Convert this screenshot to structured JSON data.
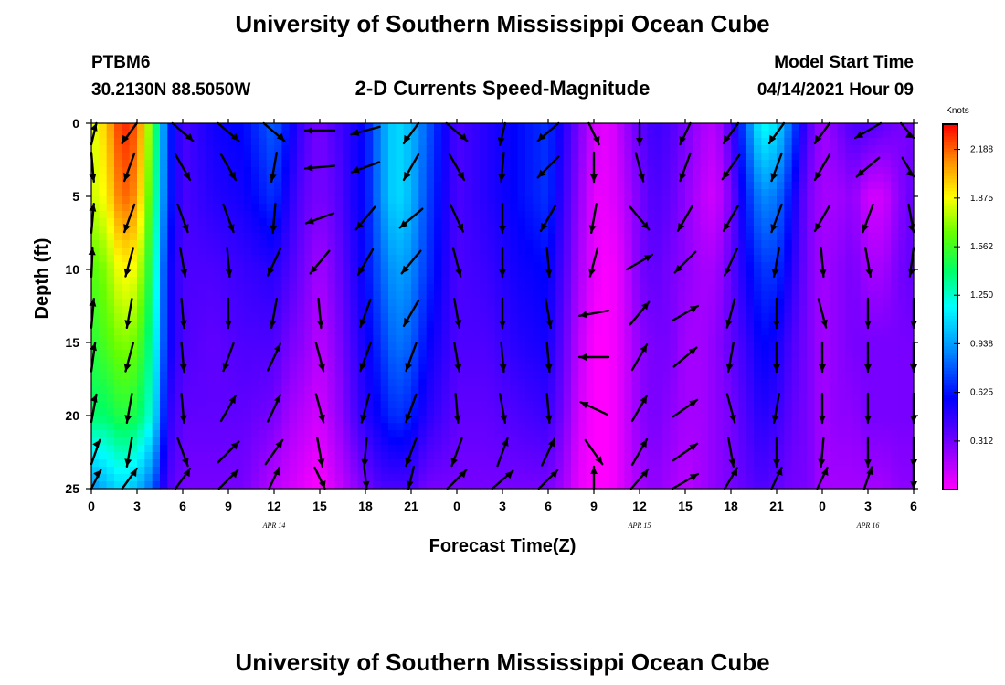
{
  "chart_data": {
    "type": "heatmap",
    "title": "University of Southern Mississippi Ocean Cube",
    "footer_title": "University of Southern Mississippi Ocean Cube",
    "station": "PTBM6",
    "location": "30.2130N  88.5050W",
    "subtitle": "2-D Currents Speed-Magnitude",
    "model_start_label": "Model Start Time",
    "model_start_value": "04/14/2021 Hour 09",
    "xlabel": "Forecast Time(Z)",
    "ylabel": "Depth (ft)",
    "xlim": [
      0,
      54
    ],
    "ylim": [
      0,
      25
    ],
    "x_ticks": [
      0,
      3,
      6,
      9,
      12,
      15,
      18,
      21,
      24,
      27,
      30,
      33,
      36,
      39,
      42,
      45,
      48,
      51,
      54
    ],
    "x_tick_labels": [
      "0",
      "3",
      "6",
      "9",
      "12",
      "15",
      "18",
      "21",
      "0",
      "3",
      "6",
      "9",
      "12",
      "15",
      "18",
      "21",
      "0",
      "3",
      "6"
    ],
    "y_ticks": [
      0,
      5,
      10,
      15,
      20,
      25
    ],
    "y_tick_labels": [
      "0",
      "5",
      "10",
      "15",
      "20",
      "25"
    ],
    "date_labels": [
      {
        "x": 12,
        "text": "APR  14"
      },
      {
        "x": 36,
        "text": "APR  15"
      },
      {
        "x": 51,
        "text": "APR  16"
      }
    ],
    "colorbar": {
      "label": "Knots",
      "min": 0,
      "max": 2.35,
      "ticks": [
        2.188,
        1.875,
        1.562,
        1.25,
        0.938,
        0.625,
        0.312
      ],
      "tick_labels": [
        "2.188",
        "1.875",
        "1.562",
        "1.250",
        "0.938",
        "0.625",
        "0.312"
      ]
    },
    "speed_profile": {
      "times": [
        0,
        1,
        2,
        3,
        4,
        5,
        6,
        8,
        10,
        12,
        13,
        14,
        15,
        16,
        17,
        18,
        19,
        20,
        21,
        22,
        24,
        26,
        28,
        30,
        31,
        32,
        33,
        34,
        35,
        36,
        37,
        38,
        39,
        40,
        41,
        42,
        43,
        44,
        45,
        46,
        47,
        48,
        49,
        50,
        51,
        52,
        53,
        54
      ],
      "depths": [
        0,
        5,
        10,
        15,
        20,
        25
      ],
      "speeds_knots": [
        [
          1.8,
          1.8,
          1.6,
          1.5,
          1.4,
          0.9
        ],
        [
          2.0,
          1.9,
          1.7,
          1.6,
          1.4,
          1.0
        ],
        [
          2.3,
          2.2,
          1.9,
          1.7,
          1.5,
          1.1
        ],
        [
          2.2,
          2.1,
          1.85,
          1.65,
          1.45,
          1.0
        ],
        [
          1.6,
          1.5,
          1.4,
          1.3,
          1.2,
          0.8
        ],
        [
          0.7,
          0.7,
          0.6,
          0.6,
          0.5,
          0.4
        ],
        [
          0.4,
          0.4,
          0.4,
          0.4,
          0.35,
          0.3
        ],
        [
          0.55,
          0.5,
          0.4,
          0.35,
          0.35,
          0.3
        ],
        [
          0.6,
          0.55,
          0.45,
          0.4,
          0.35,
          0.3
        ],
        [
          0.8,
          0.7,
          0.5,
          0.4,
          0.3,
          0.15
        ],
        [
          0.6,
          0.5,
          0.4,
          0.3,
          0.2,
          0.1
        ],
        [
          0.4,
          0.35,
          0.3,
          0.25,
          0.15,
          0.05
        ],
        [
          0.3,
          0.3,
          0.2,
          0.15,
          0.1,
          0.0
        ],
        [
          0.4,
          0.35,
          0.3,
          0.25,
          0.2,
          0.1
        ],
        [
          0.5,
          0.5,
          0.45,
          0.4,
          0.35,
          0.2
        ],
        [
          0.6,
          0.6,
          0.6,
          0.55,
          0.5,
          0.3
        ],
        [
          0.9,
          0.9,
          0.8,
          0.7,
          0.6,
          0.4
        ],
        [
          1.1,
          1.1,
          0.95,
          0.85,
          0.7,
          0.4
        ],
        [
          1.0,
          1.0,
          0.9,
          0.8,
          0.65,
          0.4
        ],
        [
          0.8,
          0.75,
          0.7,
          0.6,
          0.5,
          0.3
        ],
        [
          0.4,
          0.4,
          0.4,
          0.4,
          0.35,
          0.3
        ],
        [
          0.5,
          0.5,
          0.45,
          0.4,
          0.35,
          0.3
        ],
        [
          0.6,
          0.6,
          0.55,
          0.5,
          0.4,
          0.3
        ],
        [
          0.7,
          0.7,
          0.6,
          0.55,
          0.45,
          0.3
        ],
        [
          0.5,
          0.45,
          0.4,
          0.35,
          0.3,
          0.2
        ],
        [
          0.3,
          0.25,
          0.2,
          0.15,
          0.1,
          0.05
        ],
        [
          0.1,
          0.05,
          0.05,
          0.0,
          0.0,
          0.0
        ],
        [
          0.05,
          0.05,
          0.0,
          0.0,
          0.0,
          0.0
        ],
        [
          0.2,
          0.15,
          0.1,
          0.1,
          0.1,
          0.1
        ],
        [
          0.35,
          0.3,
          0.3,
          0.25,
          0.25,
          0.2
        ],
        [
          0.45,
          0.4,
          0.35,
          0.3,
          0.3,
          0.25
        ],
        [
          0.4,
          0.35,
          0.3,
          0.3,
          0.25,
          0.2
        ],
        [
          0.3,
          0.25,
          0.25,
          0.2,
          0.2,
          0.15
        ],
        [
          0.2,
          0.15,
          0.2,
          0.2,
          0.2,
          0.2
        ],
        [
          0.15,
          0.1,
          0.2,
          0.25,
          0.25,
          0.25
        ],
        [
          0.4,
          0.3,
          0.35,
          0.35,
          0.3,
          0.3
        ],
        [
          0.8,
          0.65,
          0.55,
          0.45,
          0.4,
          0.35
        ],
        [
          1.2,
          0.9,
          0.7,
          0.6,
          0.5,
          0.4
        ],
        [
          1.1,
          0.85,
          0.7,
          0.55,
          0.45,
          0.35
        ],
        [
          0.8,
          0.6,
          0.5,
          0.4,
          0.35,
          0.3
        ],
        [
          0.4,
          0.3,
          0.3,
          0.3,
          0.3,
          0.3
        ],
        [
          0.2,
          0.2,
          0.2,
          0.2,
          0.2,
          0.2
        ],
        [
          0.3,
          0.2,
          0.25,
          0.25,
          0.25,
          0.2
        ],
        [
          0.4,
          0.25,
          0.3,
          0.3,
          0.25,
          0.2
        ],
        [
          0.4,
          0.1,
          0.2,
          0.3,
          0.3,
          0.2
        ],
        [
          0.35,
          0.1,
          0.2,
          0.3,
          0.3,
          0.2
        ],
        [
          0.3,
          0.25,
          0.3,
          0.3,
          0.3,
          0.25
        ],
        [
          0.3,
          0.35,
          0.35,
          0.3,
          0.3,
          0.25
        ]
      ]
    },
    "vectors": {
      "times": [
        0,
        2.5,
        6,
        9,
        12,
        15,
        18,
        21,
        24,
        27,
        30,
        33,
        36,
        39,
        42,
        45,
        48,
        51,
        54
      ],
      "depths": [
        0.5,
        3,
        6.5,
        9.5,
        13,
        16,
        19.5,
        22.5,
        24.5
      ],
      "directions_deg_from_north": [
        [
          20,
          210,
          135,
          135,
          135,
          270,
          255,
          210,
          135,
          190,
          225,
          160,
          180,
          200,
          210,
          210,
          210,
          240,
          120
        ],
        [
          170,
          200,
          150,
          150,
          190,
          265,
          250,
          210,
          150,
          185,
          225,
          180,
          165,
          200,
          215,
          200,
          210,
          230,
          130
        ],
        [
          10,
          200,
          160,
          160,
          185,
          250,
          220,
          230,
          155,
          180,
          210,
          190,
          140,
          210,
          210,
          200,
          210,
          200,
          160
        ],
        [
          5,
          195,
          170,
          175,
          205,
          220,
          210,
          220,
          165,
          180,
          175,
          195,
          60,
          225,
          205,
          190,
          175,
          170,
          195
        ],
        [
          10,
          190,
          175,
          180,
          190,
          175,
          200,
          210,
          170,
          180,
          170,
          260,
          40,
          60,
          195,
          180,
          165,
          180,
          180
        ],
        [
          15,
          195,
          175,
          200,
          25,
          165,
          200,
          200,
          170,
          175,
          175,
          270,
          30,
          50,
          190,
          180,
          180,
          180,
          180
        ],
        [
          20,
          190,
          175,
          30,
          25,
          165,
          195,
          200,
          175,
          170,
          175,
          295,
          30,
          55,
          165,
          190,
          180,
          180,
          180
        ],
        [
          35,
          190,
          160,
          45,
          35,
          170,
          185,
          200,
          200,
          20,
          25,
          145,
          30,
          55,
          170,
          180,
          185,
          180,
          180
        ],
        [
          40,
          30,
          30,
          40,
          20,
          160,
          175,
          190,
          40,
          45,
          40,
          0,
          35,
          60,
          25,
          20,
          20,
          15,
          180
        ]
      ]
    }
  }
}
